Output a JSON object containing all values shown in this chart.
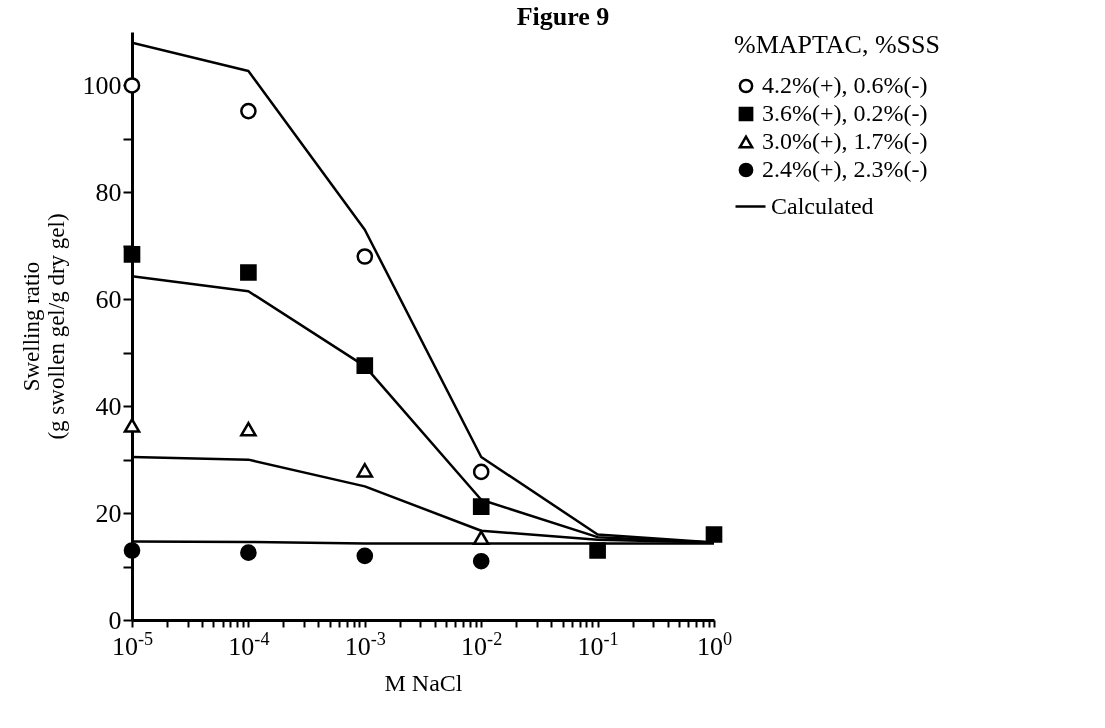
{
  "chart_data": {
    "type": "scatter",
    "title": "Figure 9",
    "xlabel": "M NaCl",
    "ylabel": "Swelling ratio\n(g swollen gel/g dry gel)",
    "legend_title": "%MAPTAC, %SSS",
    "legend": "right",
    "grid": false,
    "log": "x",
    "x": [
      1e-05,
      0.0001,
      0.001,
      0.01,
      0.1,
      1
    ],
    "xlim": [
      1e-05,
      1
    ],
    "ylim": [
      0,
      110
    ],
    "xticks": [
      {
        "value": 1e-05,
        "label": "10$^{-5}$"
      },
      {
        "value": 2e-05,
        "label": null
      },
      {
        "value": 3e-05,
        "label": null
      },
      {
        "value": 4e-05,
        "label": null
      },
      {
        "value": 5e-05,
        "label": null
      },
      {
        "value": 6e-05,
        "label": null
      },
      {
        "value": 7e-05,
        "label": null
      },
      {
        "value": 8e-05,
        "label": null
      },
      {
        "value": 9e-05,
        "label": null
      },
      {
        "value": 0.0001,
        "label": "10$^{-4}$"
      },
      {
        "value": 0.0002,
        "label": null
      },
      {
        "value": 0.0003,
        "label": null
      },
      {
        "value": 0.0004,
        "label": null
      },
      {
        "value": 0.0005,
        "label": null
      },
      {
        "value": 0.0006,
        "label": null
      },
      {
        "value": 0.0007,
        "label": null
      },
      {
        "value": 0.0008,
        "label": null
      },
      {
        "value": 0.0009,
        "label": null
      },
      {
        "value": 0.001,
        "label": "10$^{-3}$"
      },
      {
        "value": 0.002,
        "label": null
      },
      {
        "value": 0.003,
        "label": null
      },
      {
        "value": 0.004,
        "label": null
      },
      {
        "value": 0.005,
        "label": null
      },
      {
        "value": 0.006,
        "label": null
      },
      {
        "value": 0.007,
        "label": null
      },
      {
        "value": 0.008,
        "label": null
      },
      {
        "value": 0.009,
        "label": null
      },
      {
        "value": 0.01,
        "label": "10$^{-2}$"
      },
      {
        "value": 0.02,
        "label": null
      },
      {
        "value": 0.03,
        "label": null
      },
      {
        "value": 0.04,
        "label": null
      },
      {
        "value": 0.05,
        "label": null
      },
      {
        "value": 0.06,
        "label": null
      },
      {
        "value": 0.07,
        "label": null
      },
      {
        "value": 0.08,
        "label": null
      },
      {
        "value": 0.09,
        "label": null
      },
      {
        "value": 0.1,
        "label": "10$^{-1}$"
      },
      {
        "value": 0.2,
        "label": null
      },
      {
        "value": 0.3,
        "label": null
      },
      {
        "value": 0.4,
        "label": null
      },
      {
        "value": 0.5,
        "label": null
      },
      {
        "value": 0.6,
        "label": null
      },
      {
        "value": 0.7,
        "label": null
      },
      {
        "value": 0.8,
        "label": null
      },
      {
        "value": 0.9,
        "label": null
      },
      {
        "value": 1,
        "label": "10$^{0}$"
      }
    ],
    "yticks": [
      0,
      {
        "value": 10,
        "label": null
      },
      20,
      {
        "value": 30,
        "label": null
      },
      40,
      {
        "value": 50,
        "label": null
      },
      60,
      {
        "value": 70,
        "label": null
      },
      80,
      {
        "value": 90,
        "label": null
      },
      100
    ],
    "series": [
      {
        "name": "4.2%(+), 0.6%(-)",
        "marker": "circle",
        "color": "#ffffff",
        "values": [
          100,
          95.2,
          68,
          27.7,
          null,
          null
        ]
      },
      {
        "name": "3.6%(+), 0.2%(-)",
        "marker": "square",
        "color": "#000000",
        "values": [
          68.4,
          65,
          47.6,
          21.2,
          13,
          16
        ]
      },
      {
        "name": "3.0%(+), 1.7%(-)",
        "marker": "triangle",
        "color": "#ffffff",
        "values": [
          36.4,
          35.7,
          28,
          15.4,
          null,
          null
        ]
      },
      {
        "name": "2.4%(+), 2.3%(-)",
        "marker": "circle",
        "color": "#000000",
        "values": [
          13,
          12.6,
          12,
          11,
          null,
          null
        ]
      },
      {
        "name": "Calculated",
        "type": "line",
        "color": "#000000",
        "values": [
          108,
          102.7,
          73,
          30.5,
          16,
          14.5
        ]
      },
      {
        "type": "line",
        "color": "#000000",
        "values": [
          64.3,
          61.5,
          47.5,
          22.5,
          15.5,
          14.5
        ]
      },
      {
        "type": "line",
        "color": "#000000",
        "values": [
          30.5,
          30,
          25,
          16.7,
          15,
          14.5
        ]
      },
      {
        "type": "line",
        "color": "#000000",
        "values": [
          14.7,
          14.6,
          14.3,
          14.3,
          14.3,
          14.3
        ]
      }
    ]
  }
}
